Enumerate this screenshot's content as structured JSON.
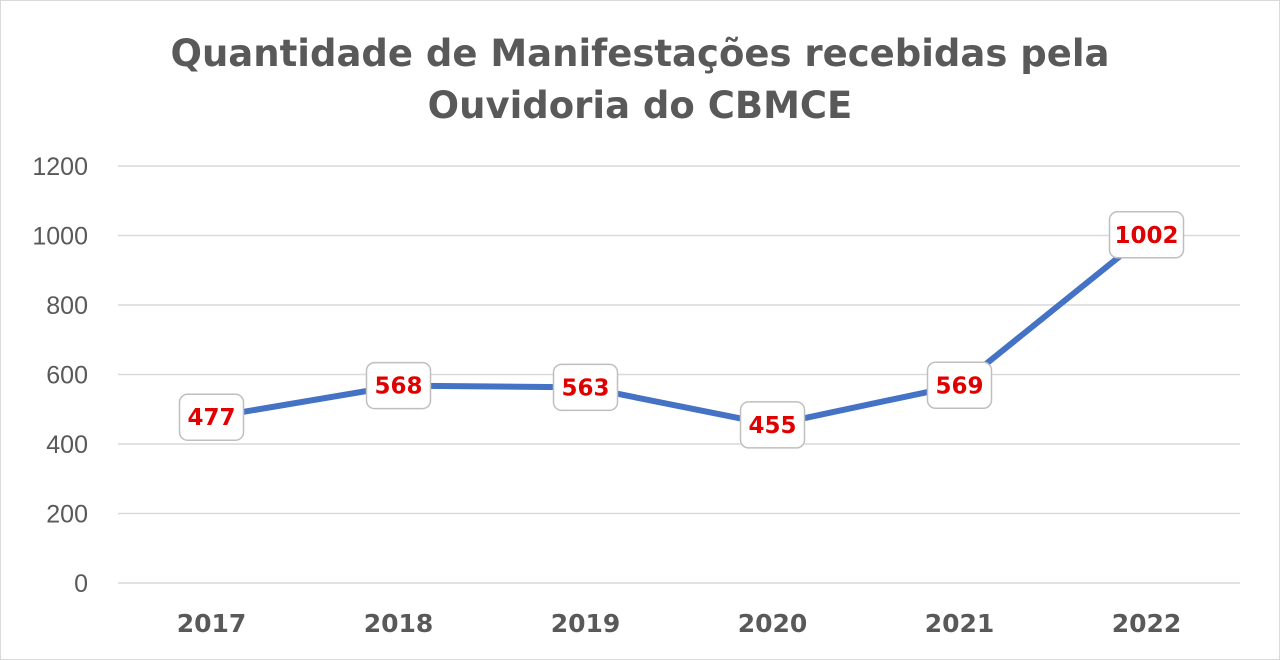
{
  "chart_data": {
    "type": "line",
    "title_lines": [
      "Quantidade de Manifestações recebidas pela",
      "Ouvidoria do CBMCE"
    ],
    "categories": [
      "2017",
      "2018",
      "2019",
      "2020",
      "2021",
      "2022"
    ],
    "values": [
      477,
      568,
      563,
      455,
      569,
      1002
    ],
    "data_labels": [
      "477",
      "568",
      "563",
      "455",
      "569",
      "1002"
    ],
    "ylim": [
      0,
      1200
    ],
    "yticks": [
      "0",
      "200",
      "400",
      "600",
      "800",
      "1000",
      "1200"
    ],
    "grid": true,
    "legend": "none",
    "xlabel": "",
    "ylabel": "",
    "colors": {
      "line": "#4472C4",
      "data_label_text": "#E00000",
      "axis_text": "#595959",
      "grid": "#D9D9D9"
    }
  }
}
